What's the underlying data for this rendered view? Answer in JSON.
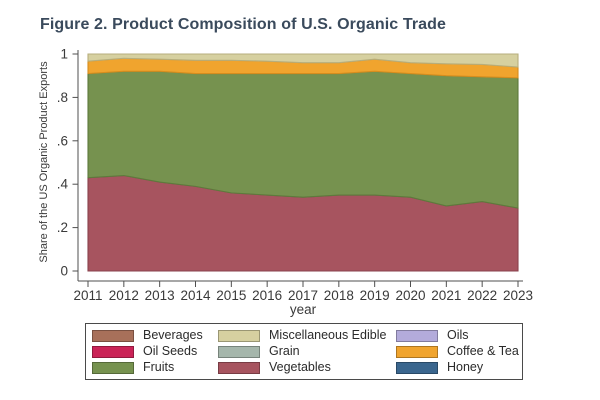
{
  "title": "Figure 2. Product Composition of U.S. Organic Trade",
  "chart_data": {
    "type": "area",
    "stacked": true,
    "title": "Figure 2. Product Composition of U.S. Organic Trade",
    "xlabel": "year",
    "ylabel": "Share of the US Organic Product Exports",
    "x": [
      2011,
      2012,
      2013,
      2014,
      2015,
      2016,
      2017,
      2018,
      2019,
      2020,
      2021,
      2022,
      2023
    ],
    "ylim": [
      0,
      1
    ],
    "y_ticks": [
      0,
      0.2,
      0.4,
      0.6,
      0.8,
      1
    ],
    "y_tick_labels": [
      "0",
      ".2",
      ".4",
      ".6",
      ".8",
      "1"
    ],
    "grid": false,
    "legend_position": "bottom",
    "series": [
      {
        "name": "Vegetables",
        "color": "#a7545f",
        "edge": "#8a424d",
        "values": [
          0.43,
          0.44,
          0.41,
          0.39,
          0.36,
          0.35,
          0.34,
          0.35,
          0.35,
          0.34,
          0.3,
          0.32,
          0.29
        ]
      },
      {
        "name": "Fruits",
        "color": "#76924f",
        "edge": "#5e7a3c",
        "values": [
          0.48,
          0.48,
          0.51,
          0.52,
          0.55,
          0.56,
          0.57,
          0.56,
          0.57,
          0.57,
          0.6,
          0.575,
          0.6
        ]
      },
      {
        "name": "Coffee & Tea",
        "color": "#f0a42e",
        "edge": "#d68d1e",
        "values": [
          0.057,
          0.06,
          0.056,
          0.061,
          0.061,
          0.057,
          0.05,
          0.05,
          0.056,
          0.05,
          0.055,
          0.057,
          0.05
        ]
      },
      {
        "name": "Miscellaneous Edible",
        "color": "#d6d0a0",
        "edge": "#b7ae7c",
        "values": [
          0.033,
          0.02,
          0.024,
          0.029,
          0.029,
          0.033,
          0.04,
          0.04,
          0.024,
          0.04,
          0.045,
          0.048,
          0.06
        ]
      }
    ],
    "legend": [
      {
        "label": "Beverages",
        "color": "#a8705a"
      },
      {
        "label": "Miscellaneous Edible",
        "color": "#d6d0a0"
      },
      {
        "label": "Oils",
        "color": "#b3abdb"
      },
      {
        "label": "Oil Seeds",
        "color": "#ca2357"
      },
      {
        "label": "Grain",
        "color": "#a5b6ab"
      },
      {
        "label": "Coffee & Tea",
        "color": "#f0a42e"
      },
      {
        "label": "Fruits",
        "color": "#76924f"
      },
      {
        "label": "Vegetables",
        "color": "#a7545f"
      },
      {
        "label": "Honey",
        "color": "#3a668e"
      }
    ]
  }
}
